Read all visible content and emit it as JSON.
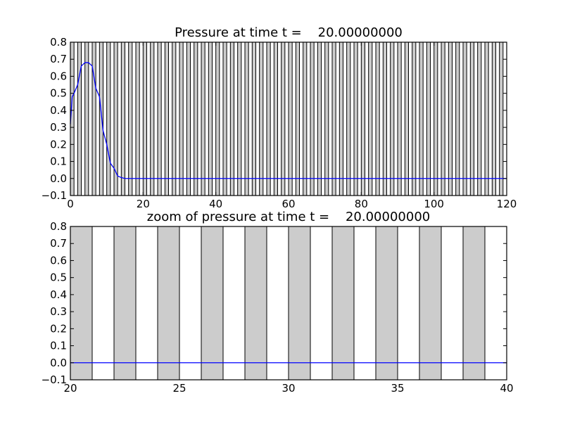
{
  "colors": {
    "background": "#ffffff",
    "stripe_fill": "#cccccc",
    "stripe_edge": "#000000",
    "line": "#0000ff"
  },
  "chart_data": [
    {
      "type": "line",
      "title": "Pressure at time t =    20.00000000",
      "xlabel": "",
      "ylabel": "",
      "xlim": [
        0,
        120
      ],
      "ylim": [
        -0.1,
        0.8
      ],
      "xticks": [
        0,
        20,
        40,
        60,
        80,
        100,
        120
      ],
      "yticks": [
        -0.1,
        0.0,
        0.1,
        0.2,
        0.3,
        0.4,
        0.5,
        0.6,
        0.7,
        0.8
      ],
      "grid": false,
      "bands": {
        "description": "grey vertical bands of width 1 starting at every even x",
        "start": 0,
        "end": 120,
        "period": 2,
        "width": 1,
        "ymin": -0.1,
        "ymax": 0.8
      },
      "series": [
        {
          "x": [
            0,
            0.5,
            1,
            2,
            3,
            4,
            5,
            6,
            7,
            8,
            9,
            10,
            11,
            12,
            13,
            14,
            15,
            16,
            20,
            40,
            60,
            80,
            100,
            120
          ],
          "y": [
            0.32,
            0.48,
            0.5,
            0.55,
            0.66,
            0.68,
            0.68,
            0.66,
            0.53,
            0.48,
            0.28,
            0.2,
            0.09,
            0.06,
            0.015,
            0.005,
            0.0,
            0.0,
            0.0,
            0.0,
            0.0,
            0.0,
            0.0,
            0.0
          ]
        }
      ]
    },
    {
      "type": "line",
      "title": "zoom of pressure at time t =    20.00000000",
      "xlabel": "",
      "ylabel": "",
      "xlim": [
        20,
        40
      ],
      "ylim": [
        -0.1,
        0.8
      ],
      "xticks": [
        20,
        25,
        30,
        35,
        40
      ],
      "yticks": [
        -0.1,
        0.0,
        0.1,
        0.2,
        0.3,
        0.4,
        0.5,
        0.6,
        0.7,
        0.8
      ],
      "grid": false,
      "bands": {
        "description": "grey vertical bands of width 1 starting at every even x",
        "start": 20,
        "end": 40,
        "period": 2,
        "width": 1,
        "ymin": -0.1,
        "ymax": 0.8
      },
      "series": [
        {
          "x": [
            20,
            40
          ],
          "y": [
            0.0,
            0.0
          ]
        }
      ]
    }
  ]
}
